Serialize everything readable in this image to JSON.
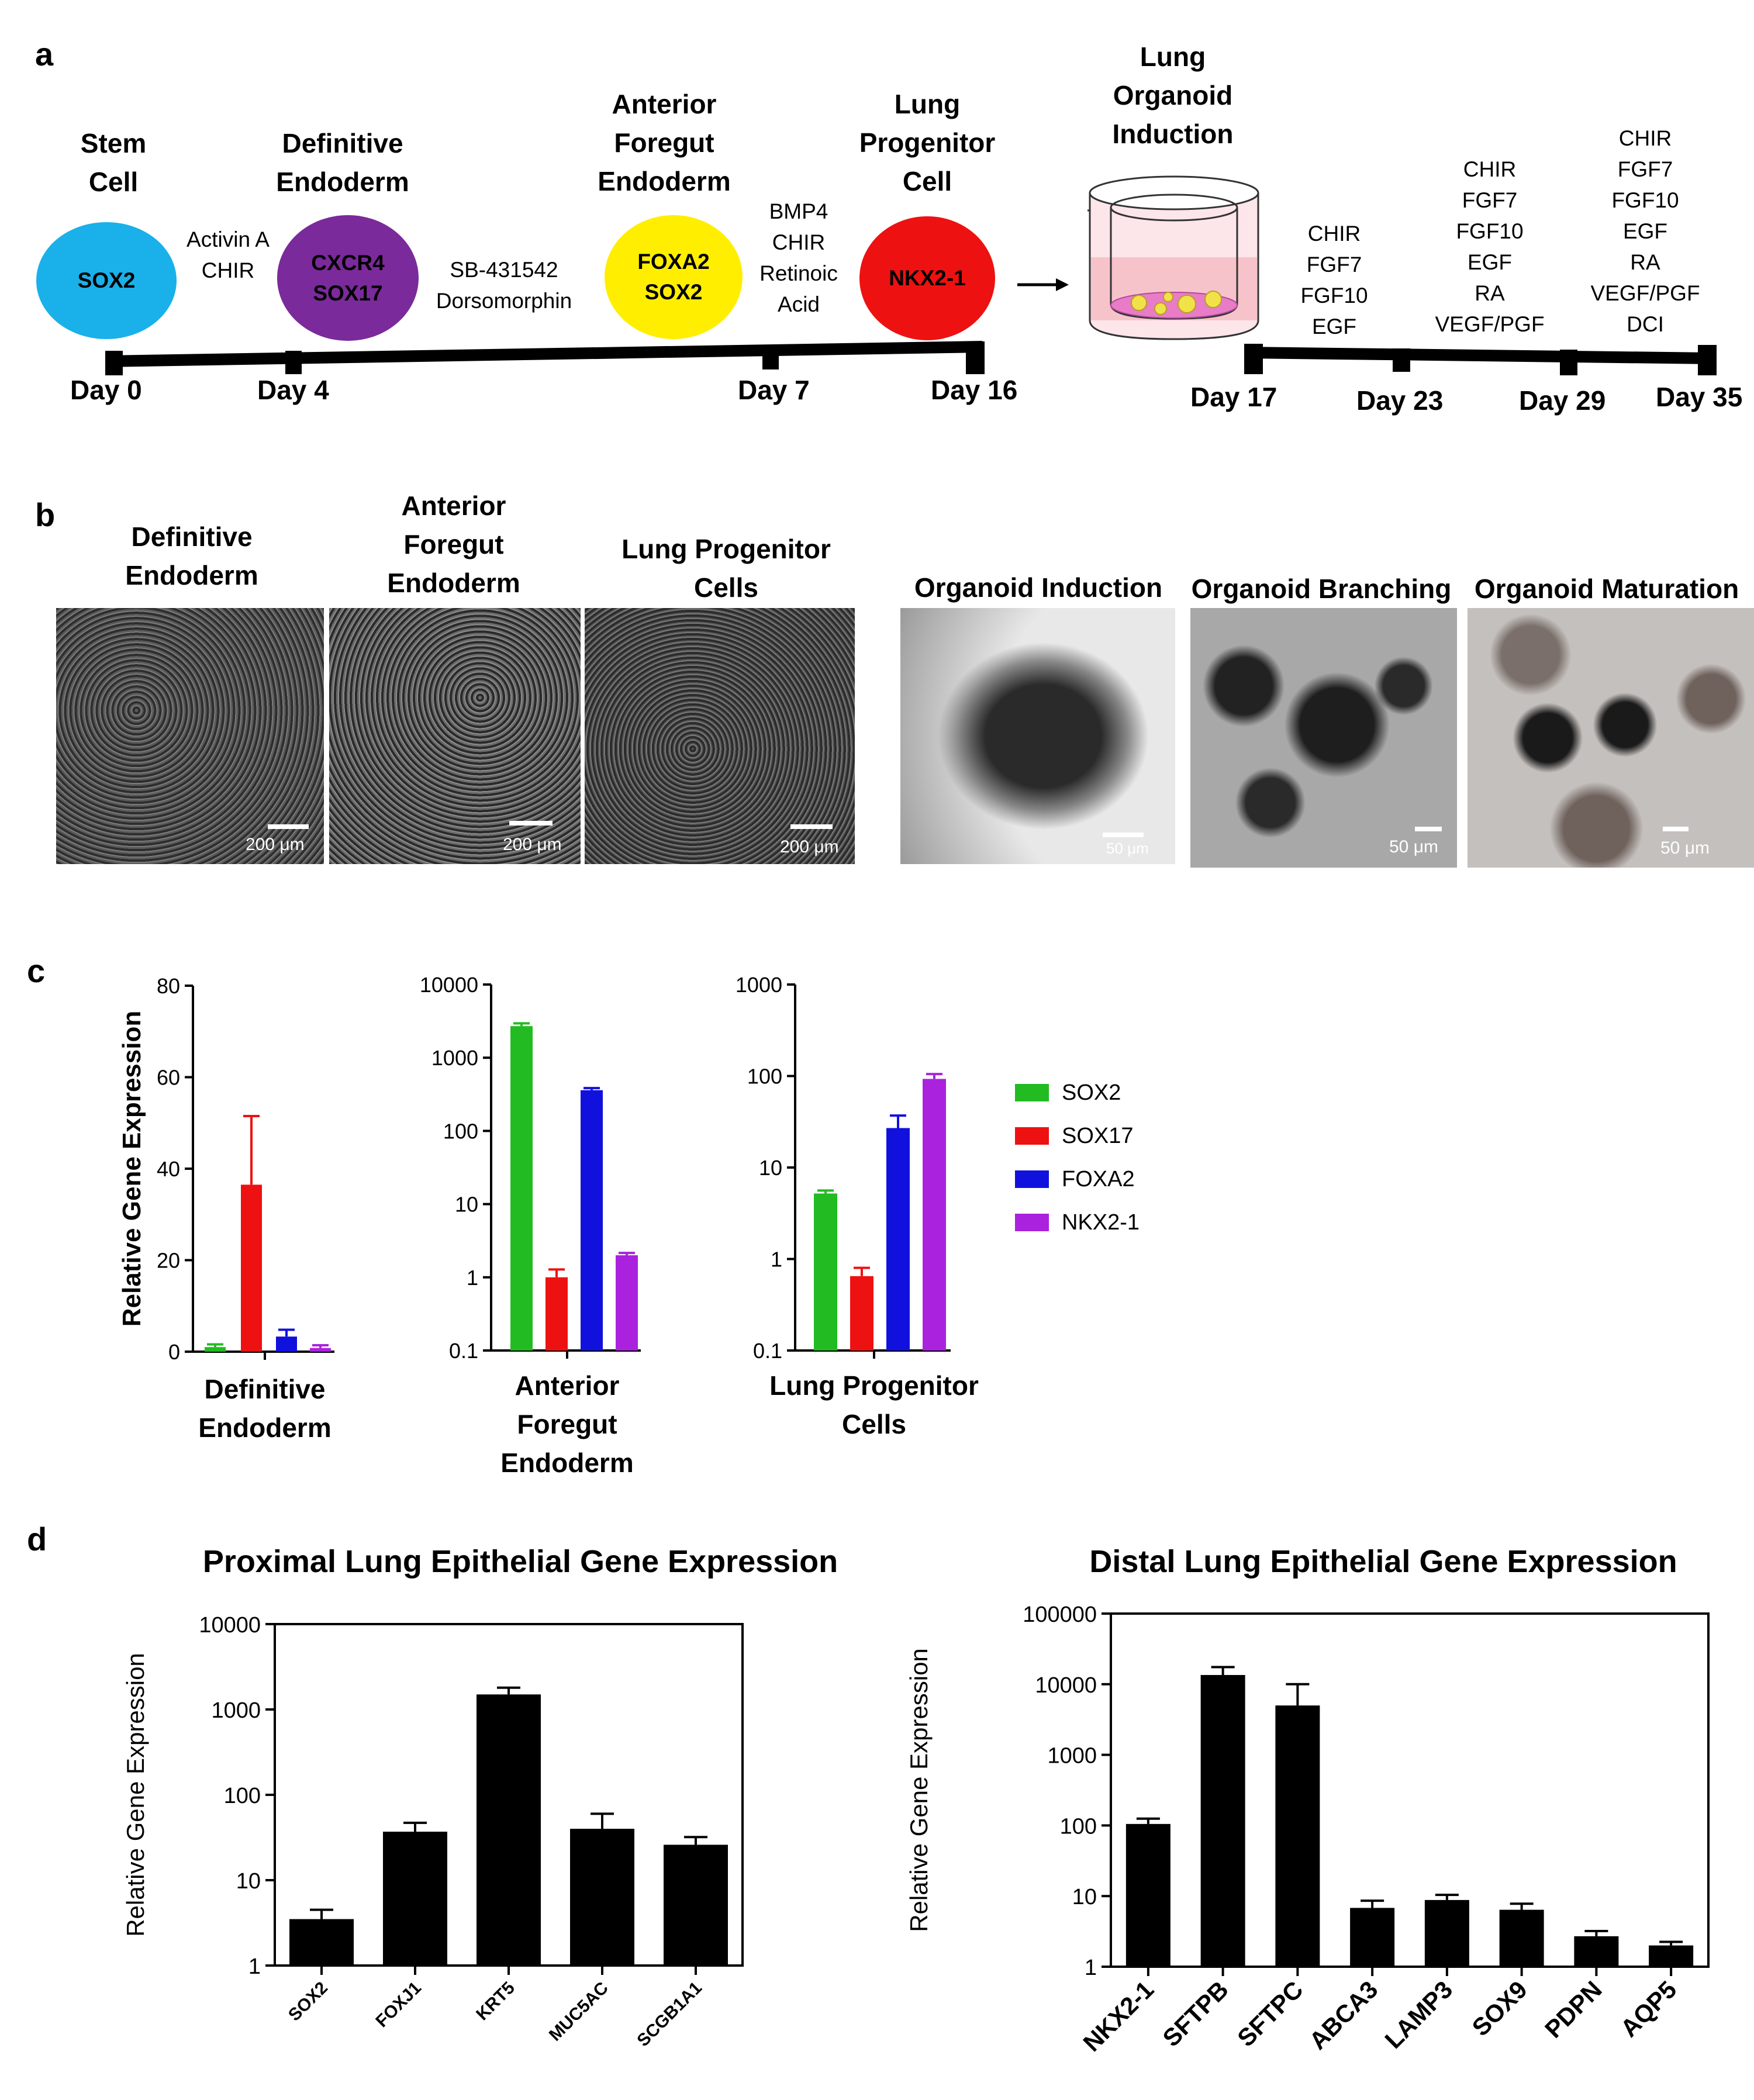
{
  "panels": {
    "a": "a",
    "b": "b",
    "c": "c",
    "d": "d"
  },
  "timeline": {
    "stages": [
      {
        "title": [
          "Stem",
          "Cell"
        ],
        "markers": [
          "SOX2"
        ],
        "color": "#1ab0ea",
        "text_color": "#000000"
      },
      {
        "title": [
          "Definitive",
          "Endoderm"
        ],
        "markers": [
          "CXCR4",
          "SOX17"
        ],
        "color": "#7a2a9a",
        "text_color": "#000000"
      },
      {
        "title": [
          "Anterior",
          "Foregut",
          "Endoderm"
        ],
        "markers": [
          "FOXA2",
          "SOX2"
        ],
        "color": "#ffee00",
        "text_color": "#000000"
      },
      {
        "title": [
          "Lung",
          "Progenitor",
          "Cell"
        ],
        "markers": [
          "NKX2-1"
        ],
        "color": "#ee1111",
        "text_color": "#000000"
      }
    ],
    "treatments": [
      [
        "Activin A",
        "CHIR"
      ],
      [
        "SB-431542",
        "Dorsomorphin"
      ],
      [
        "BMP4",
        "CHIR",
        "Retinoic",
        "Acid"
      ]
    ],
    "days_left": [
      "Day 0",
      "Day 4",
      "Day 7",
      "Day 16"
    ],
    "organoid_title": [
      "Lung",
      "Organoid",
      "Induction"
    ],
    "organoid_media": [
      [
        "CHIR",
        "FGF7",
        "FGF10",
        "EGF"
      ],
      [
        "CHIR",
        "FGF7",
        "FGF10",
        "EGF",
        "RA",
        "VEGF/PGF"
      ],
      [
        "CHIR",
        "FGF7",
        "FGF10",
        "EGF",
        "RA",
        "VEGF/PGF",
        "DCI"
      ]
    ],
    "days_right": [
      "Day 17",
      "Day 23",
      "Day 29",
      "Day 35"
    ]
  },
  "micrographs": [
    {
      "title": [
        "Definitive",
        "Endoderm"
      ],
      "scale": "200 μm"
    },
    {
      "title": [
        "Anterior",
        "Foregut",
        "Endoderm"
      ],
      "scale": "200 μm"
    },
    {
      "title": [
        "Lung Progenitor",
        "Cells"
      ],
      "scale": "200 μm"
    },
    {
      "title": [
        "Organoid Induction"
      ],
      "scale": "50 μm"
    },
    {
      "title": [
        "Organoid Branching"
      ],
      "scale": "50 μm"
    },
    {
      "title": [
        "Organoid Maturation"
      ],
      "scale": "50 μm"
    }
  ],
  "chart_data": [
    {
      "type": "bar",
      "scale": "linear",
      "ylabel": "Relative Gene Expression",
      "xlabel": "Definitive Endoderm",
      "ylim": [
        0,
        80
      ],
      "yticks": [
        0,
        20,
        40,
        60,
        80
      ],
      "series": [
        {
          "name": "SOX2",
          "values": [
            1.0
          ],
          "errors": [
            0.6
          ]
        },
        {
          "name": "SOX17",
          "values": [
            36.5
          ],
          "errors": [
            15.0
          ]
        },
        {
          "name": "FOXA2",
          "values": [
            3.3
          ],
          "errors": [
            1.5
          ]
        },
        {
          "name": "NKX2-1",
          "values": [
            0.8
          ],
          "errors": [
            0.6
          ]
        }
      ]
    },
    {
      "type": "bar",
      "scale": "log",
      "ylabel": "",
      "xlabel": "Anterior Foregut Endoderm",
      "ylim": [
        0.1,
        10000
      ],
      "yticks": [
        0.1,
        1,
        10,
        100,
        1000,
        10000
      ],
      "series": [
        {
          "name": "SOX2",
          "values": [
            2700
          ],
          "errors": [
            250
          ]
        },
        {
          "name": "SOX17",
          "values": [
            1.0
          ],
          "errors": [
            0.28
          ]
        },
        {
          "name": "FOXA2",
          "values": [
            360
          ],
          "errors": [
            25
          ]
        },
        {
          "name": "NKX2-1",
          "values": [
            2.0
          ],
          "errors": [
            0.15
          ]
        }
      ]
    },
    {
      "type": "bar",
      "scale": "log",
      "ylabel": "",
      "xlabel": "Lung Progenitor Cells",
      "ylim": [
        0.1,
        1000
      ],
      "yticks": [
        0.1,
        1,
        10,
        100,
        1000
      ],
      "series": [
        {
          "name": "SOX2",
          "values": [
            5.2
          ],
          "errors": [
            0.4
          ]
        },
        {
          "name": "SOX17",
          "values": [
            0.65
          ],
          "errors": [
            0.15
          ]
        },
        {
          "name": "FOXA2",
          "values": [
            27
          ],
          "errors": [
            10
          ]
        },
        {
          "name": "NKX2-1",
          "values": [
            93
          ],
          "errors": [
            12
          ]
        }
      ]
    },
    {
      "type": "bar",
      "scale": "log",
      "title": "Proximal Lung Epithelial Gene Expression",
      "ylabel": "Relative Gene Expression",
      "ylim": [
        1,
        10000
      ],
      "yticks": [
        1,
        10,
        100,
        1000,
        10000
      ],
      "categories": [
        "SOX2",
        "FOXJ1",
        "KRT5",
        "MUC5AC",
        "SCGB1A1"
      ],
      "values": [
        3.5,
        37,
        1500,
        40,
        26
      ],
      "errors": [
        1.0,
        10,
        300,
        20,
        6
      ]
    },
    {
      "type": "bar",
      "scale": "log",
      "title": "Distal Lung Epithelial Gene Expression",
      "ylabel": "Relative Gene Expression",
      "ylim": [
        1,
        100000
      ],
      "yticks": [
        1,
        10,
        100,
        1000,
        10000,
        100000
      ],
      "categories": [
        "NKX2-1",
        "SFTPB",
        "SFTPC",
        "ABCA3",
        "LAMP3",
        "SOX9",
        "PDPN",
        "AQP5"
      ],
      "values": [
        105,
        13500,
        5000,
        6.8,
        8.8,
        6.4,
        2.7,
        2.0
      ],
      "errors": [
        20,
        4000,
        5000,
        1.8,
        1.6,
        1.4,
        0.5,
        0.25
      ]
    }
  ],
  "legend": {
    "items": [
      {
        "name": "SOX2",
        "color": "#22bb22"
      },
      {
        "name": "SOX17",
        "color": "#ee1111"
      },
      {
        "name": "FOXA2",
        "color": "#1111dd"
      },
      {
        "name": "NKX2-1",
        "color": "#aa22dd"
      }
    ]
  }
}
